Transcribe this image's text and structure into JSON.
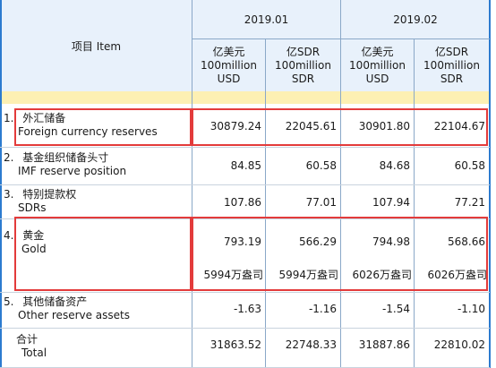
{
  "header": {
    "item_label": "项目  Item",
    "periods": [
      "2019.01",
      "2019.02"
    ],
    "units": [
      {
        "line1": "亿美元",
        "line2": "100million",
        "line3": "USD"
      },
      {
        "line1": "亿SDR",
        "line2": "100million",
        "line3": "SDR"
      },
      {
        "line1": "亿美元",
        "line2": "100million",
        "line3": "USD"
      },
      {
        "line1": "亿SDR",
        "line2": "100million",
        "line3": "SDR"
      }
    ]
  },
  "rows": [
    {
      "num": "1.",
      "zh": "外汇储备",
      "en": "Foreign currency reserves",
      "values": [
        "30879.24",
        "22045.61",
        "30901.80",
        "22104.67"
      ]
    },
    {
      "num": "2.",
      "zh": "基金组织储备头寸",
      "en": "IMF reserve position",
      "values": [
        "84.85",
        "60.58",
        "84.68",
        "60.58"
      ]
    },
    {
      "num": "3.",
      "zh": "特别提款权",
      "en": "SDRs",
      "values": [
        "107.86",
        "77.01",
        "107.94",
        "77.21"
      ]
    },
    {
      "num": "4.",
      "zh": "黄金",
      "en": "Gold",
      "values": [
        "793.19",
        "566.29",
        "794.98",
        "568.66"
      ],
      "ounces": [
        "5994万盎司",
        "5994万盎司",
        "6026万盎司",
        "6026万盎司"
      ]
    },
    {
      "num": "5.",
      "zh": "其他储备资产",
      "en": "Other reserve assets",
      "values": [
        "-1.63",
        "-1.16",
        "-1.54",
        "-1.10"
      ]
    },
    {
      "num": "",
      "zh": "合计",
      "en": "Total",
      "values": [
        "31863.52",
        "22748.33",
        "31887.86",
        "22810.02"
      ]
    }
  ],
  "colors": {
    "header_bg": "#e8f1fb",
    "band": "#fdf0b3",
    "highlight": "#e33b3b",
    "edge": "#2c7bcf"
  }
}
